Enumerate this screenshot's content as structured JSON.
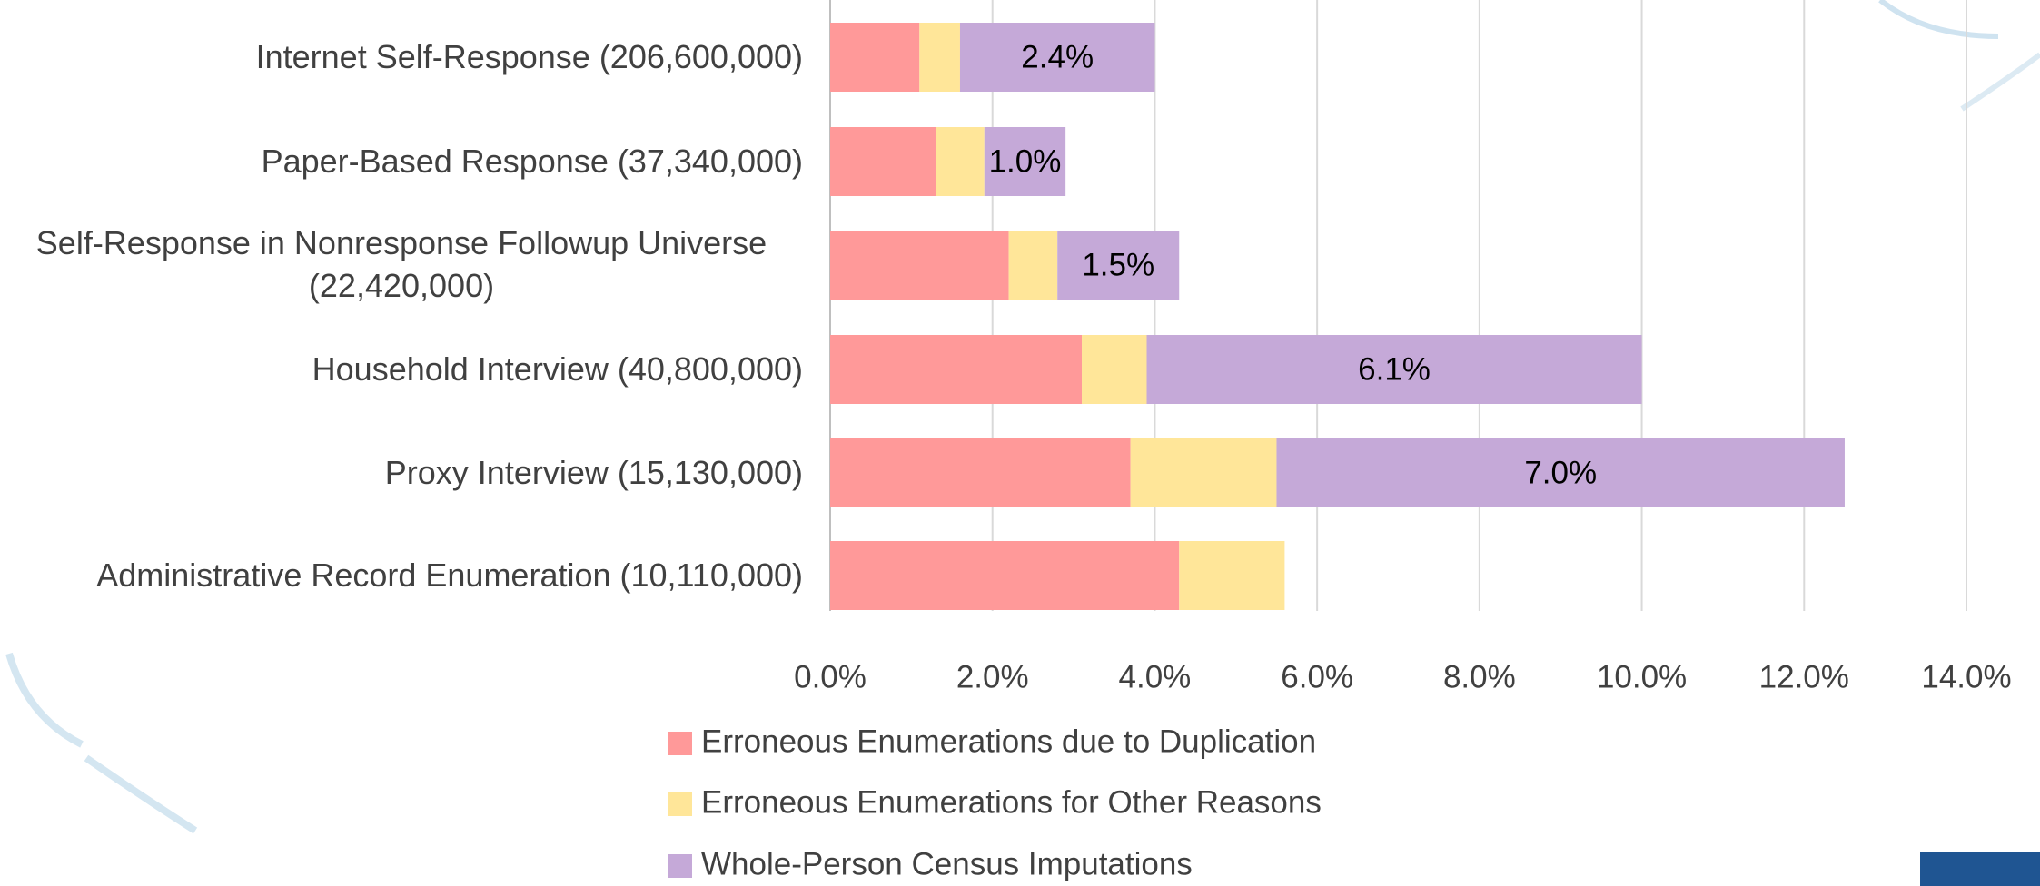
{
  "chart_data": {
    "type": "stacked-bar-horizontal",
    "categories": [
      "Internet Self-Response (206,600,000)",
      "Paper-Based Response (37,340,000)",
      "Self-Response in Nonresponse Followup Universe (22,420,000)",
      "Household Interview (40,800,000)",
      "Proxy Interview (15,130,000)",
      "Administrative Record Enumeration (10,110,000)"
    ],
    "series": [
      {
        "name": "Erroneous Enumerations due to Duplication",
        "color": "#ff9999",
        "values": [
          1.1,
          1.3,
          2.2,
          3.1,
          3.7,
          4.3
        ]
      },
      {
        "name": "Erroneous Enumerations for Other Reasons",
        "color": "#ffe699",
        "values": [
          0.5,
          0.6,
          0.6,
          0.8,
          1.8,
          1.3
        ]
      },
      {
        "name": "Whole-Person Census Imputations",
        "color": "#c5a9d8",
        "values": [
          2.4,
          1.0,
          1.5,
          6.1,
          7.0,
          0
        ],
        "value_labels": [
          "2.4%",
          "1.0%",
          "1.5%",
          "6.1%",
          "7.0%",
          null
        ]
      }
    ],
    "xlim": [
      0,
      14
    ],
    "xticks": [
      {
        "value": 0,
        "label": "0.0%"
      },
      {
        "value": 2,
        "label": "2.0%"
      },
      {
        "value": 4,
        "label": "4.0%"
      },
      {
        "value": 6,
        "label": "6.0%"
      },
      {
        "value": 8,
        "label": "8.0%"
      },
      {
        "value": 10,
        "label": "10.0%"
      },
      {
        "value": 12,
        "label": "12.0%"
      },
      {
        "value": 14,
        "label": "14.0%"
      }
    ],
    "grid": true,
    "legend": "bottom"
  }
}
